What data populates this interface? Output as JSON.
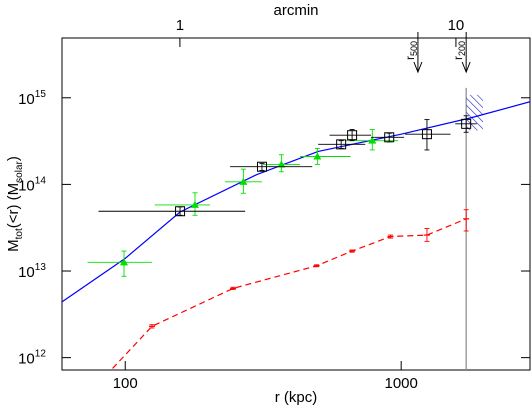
{
  "chart_data": {
    "type": "scatter",
    "xlabel": "r (kpc)",
    "x2label": "arcmin",
    "ylabel_parts": [
      {
        "text": "M"
      },
      {
        "text": "tot",
        "sub": true
      },
      {
        "text": "(<r) (M"
      },
      {
        "text": "solar",
        "sub": true
      },
      {
        "text": ")"
      }
    ],
    "log_x": true,
    "log_y": true,
    "xlim": [
      59,
      2930
    ],
    "x2lim": [
      0.374,
      18.55
    ],
    "ylim": [
      720000000000.0,
      4900000000000000.0
    ],
    "xticks": [
      100,
      1000
    ],
    "x2ticks": [
      1,
      10
    ],
    "yticks": [
      {
        "value": 1000000000000.0,
        "label": "10",
        "sup": "12"
      },
      {
        "value": 10000000000000.0,
        "label": "10",
        "sup": "13"
      },
      {
        "value": 100000000000000.0,
        "label": "10",
        "sup": "14"
      },
      {
        "value": 1000000000000000.0,
        "label": "10",
        "sup": "15"
      }
    ],
    "series": [
      {
        "color": "#0000ff",
        "line": "solid",
        "marker": "none",
        "x": [
          59,
          100,
          158,
          300,
          500,
          1000,
          1800,
          2930
        ],
        "values": [
          4400000000000.0,
          14000000000000.0,
          48000000000000.0,
          130000000000000.0,
          240000000000000.0,
          380000000000000.0,
          590000000000000.0,
          900000000000000.0
        ]
      },
      {
        "color": "#ff0000",
        "line": "dashed",
        "marker": "none",
        "x": [
          90,
          125,
          246,
          494,
          664,
          915,
          1240,
          1720
        ],
        "values": [
          750000000000.0,
          2300000000000.0,
          6300000000000.0,
          11500000000000.0,
          17000000000000.0,
          25000000000000.0,
          26000000000000.0,
          40000000000000.0
        ]
      },
      {
        "color": "#ff0000",
        "line": "none",
        "marker": "cap",
        "x": [
          125,
          246,
          494,
          664,
          915,
          1240,
          1720
        ],
        "values": [
          2300000000000.0,
          6300000000000.0,
          11500000000000.0,
          17000000000000.0,
          25000000000000.0,
          26000000000000.0,
          40000000000000.0
        ],
        "y_low": [
          2200000000000.0,
          6100000000000.0,
          11200000000000.0,
          16500000000000.0,
          24000000000000.0,
          22000000000000.0,
          29000000000000.0
        ],
        "y_high": [
          2400000000000.0,
          6500000000000.0,
          11800000000000.0,
          17500000000000.0,
          26000000000000.0,
          31000000000000.0,
          51000000000000.0
        ]
      },
      {
        "color": "#00e000",
        "line": "none",
        "marker": "triangle",
        "x": [
          99,
          179,
          268,
          368,
          497,
          786
        ],
        "values": [
          12600000000000.0,
          58000000000000.0,
          107000000000000.0,
          170000000000000.0,
          210000000000000.0,
          320000000000000.0
        ],
        "x_low": [
          73,
          128,
          230,
          316,
          430,
          627
        ],
        "x_high": [
          125,
          203,
          313,
          430,
          655,
          975
        ],
        "y_low": [
          8700000000000.0,
          44000000000000.0,
          79000000000000.0,
          140000000000000.0,
          170000000000000.0,
          250000000000000.0
        ],
        "y_high": [
          17000000000000.0,
          80000000000000.0,
          150000000000000.0,
          220000000000000.0,
          260000000000000.0,
          430000000000000.0
        ]
      },
      {
        "color": "#000000",
        "line": "none",
        "marker": "square",
        "x": [
          158,
          313,
          606,
          664,
          905,
          1240,
          1720
        ],
        "values": [
          49000000000000.0,
          160000000000000.0,
          290000000000000.0,
          370000000000000.0,
          350000000000000.0,
          380000000000000.0,
          500000000000000.0
        ],
        "x_low": [
          80,
          240,
          500,
          550,
          778,
          1033,
          1570
        ],
        "x_high": [
          272,
          476,
          741,
          778,
          1025,
          1510,
          1880
        ],
        "y_low": [
          44000000000000.0,
          145000000000000.0,
          260000000000000.0,
          320000000000000.0,
          310000000000000.0,
          250000000000000.0,
          400000000000000.0
        ],
        "y_high": [
          55000000000000.0,
          175000000000000.0,
          320000000000000.0,
          430000000000000.0,
          390000000000000.0,
          560000000000000.0,
          620000000000000.0
        ]
      }
    ],
    "annotations": [
      {
        "text": "r",
        "sub": "500",
        "x": 1150
      },
      {
        "text": "r",
        "sub": "200",
        "x": 1720
      }
    ],
    "vline": {
      "x": 1720,
      "y": [
        720000000000.0,
        1300000000000000.0
      ],
      "color": "#888888"
    },
    "hatch": {
      "x": [
        1720,
        1980
      ],
      "y": [
        420000000000000.0,
        1080000000000000.0
      ],
      "color": "#3333cc"
    }
  }
}
